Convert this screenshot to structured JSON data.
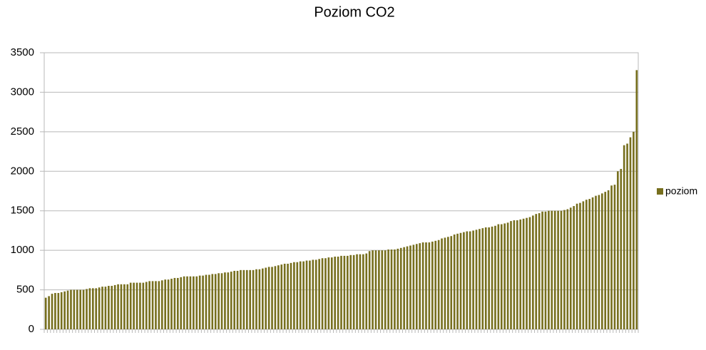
{
  "chart_data": {
    "type": "bar",
    "title": "Poziom CO2",
    "categories": [
      null,
      null,
      null,
      null,
      null,
      null,
      null,
      null,
      null,
      null,
      null,
      null,
      null,
      null,
      null,
      null,
      null,
      null,
      null,
      null,
      null,
      null,
      null,
      null,
      null,
      null,
      null,
      null,
      null,
      null,
      null,
      null,
      null,
      null,
      null,
      null,
      null,
      null,
      null,
      null,
      null,
      null,
      null,
      null,
      null,
      null,
      null,
      null,
      null,
      null,
      null,
      null,
      null,
      null,
      null,
      null,
      null,
      null,
      null,
      null,
      null,
      null,
      null,
      null,
      null,
      null,
      null,
      null,
      null,
      null,
      null,
      null,
      null,
      null,
      null,
      null,
      null,
      null,
      null,
      null,
      null,
      null,
      null,
      null,
      null,
      null,
      null,
      null,
      null,
      null,
      null,
      null,
      null,
      null,
      null,
      null,
      null,
      null,
      null,
      null,
      null,
      null,
      null,
      null,
      null,
      null,
      null,
      null,
      null,
      null,
      null,
      null,
      null,
      null,
      null,
      null,
      null,
      null,
      null,
      null,
      null,
      null,
      null,
      null,
      null,
      null,
      null,
      null,
      null,
      null,
      null,
      null,
      null,
      null,
      null,
      null,
      null,
      null,
      null,
      null,
      null,
      null,
      null,
      null,
      null,
      null,
      null,
      null,
      null,
      null,
      null,
      null,
      null,
      null,
      null,
      null,
      null,
      null,
      null,
      null,
      null,
      null,
      null,
      null,
      null,
      null,
      null,
      null,
      null,
      null,
      null,
      null,
      null,
      null,
      null,
      null,
      null,
      null,
      null,
      null,
      null,
      null,
      null,
      null,
      null,
      null,
      null,
      null,
      null
    ],
    "series": [
      {
        "name": "poziom",
        "color": "#776f1e",
        "values": [
          400,
          420,
          450,
          460,
          460,
          470,
          480,
          490,
          500,
          500,
          500,
          500,
          500,
          510,
          520,
          520,
          520,
          530,
          540,
          540,
          550,
          550,
          560,
          570,
          570,
          570,
          570,
          590,
          590,
          590,
          590,
          590,
          600,
          610,
          610,
          610,
          610,
          620,
          630,
          630,
          640,
          650,
          650,
          660,
          670,
          670,
          670,
          670,
          670,
          680,
          680,
          690,
          690,
          700,
          700,
          710,
          710,
          720,
          720,
          730,
          740,
          740,
          750,
          750,
          750,
          750,
          750,
          760,
          760,
          770,
          780,
          790,
          790,
          800,
          810,
          820,
          830,
          830,
          840,
          850,
          850,
          860,
          860,
          870,
          870,
          880,
          880,
          890,
          900,
          900,
          910,
          910,
          920,
          920,
          930,
          930,
          930,
          940,
          940,
          950,
          950,
          950,
          960,
          990,
          1000,
          1000,
          1000,
          1000,
          1000,
          1010,
          1010,
          1010,
          1020,
          1030,
          1040,
          1050,
          1060,
          1070,
          1080,
          1090,
          1100,
          1100,
          1100,
          1110,
          1120,
          1130,
          1150,
          1160,
          1170,
          1180,
          1200,
          1210,
          1220,
          1230,
          1240,
          1240,
          1250,
          1260,
          1270,
          1280,
          1290,
          1290,
          1300,
          1310,
          1330,
          1330,
          1340,
          1350,
          1370,
          1380,
          1380,
          1390,
          1400,
          1410,
          1420,
          1440,
          1460,
          1470,
          1490,
          1490,
          1500,
          1500,
          1500,
          1500,
          1500,
          1510,
          1520,
          1540,
          1560,
          1590,
          1600,
          1620,
          1640,
          1650,
          1670,
          1690,
          1700,
          1720,
          1740,
          1760,
          1820,
          1830,
          2000,
          2030,
          2330,
          2350,
          2430,
          2500,
          3280
        ]
      }
    ],
    "ylim": [
      0,
      3500
    ],
    "yticks": [
      0,
      500,
      1000,
      1500,
      2000,
      2500,
      3000,
      3500
    ],
    "grid": true,
    "legend": "right"
  }
}
